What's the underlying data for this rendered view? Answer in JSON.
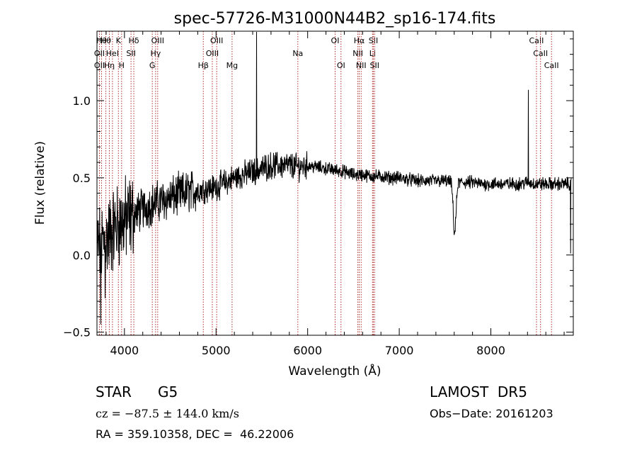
{
  "chart_data": {
    "type": "line",
    "title": "spec-57726-M31000N44B2_sp16-174.fits",
    "xlabel": "Wavelength (Å)",
    "ylabel": "Flux (relative)",
    "xlim": [
      3700,
      8900
    ],
    "ylim": [
      -0.52,
      1.45
    ],
    "xticks": [
      4000,
      5000,
      6000,
      7000,
      8000
    ],
    "yticks": [
      -0.5,
      0.0,
      0.5,
      1.0
    ],
    "ytick_labels": [
      "−0.5",
      "0.0",
      "0.5",
      "1.0"
    ],
    "grid": false,
    "line_color": "#000000",
    "marker_color": "#b03030",
    "continuum": [
      [
        3700,
        0.05
      ],
      [
        3800,
        0.1
      ],
      [
        3900,
        0.18
      ],
      [
        4000,
        0.22
      ],
      [
        4100,
        0.26
      ],
      [
        4200,
        0.3
      ],
      [
        4300,
        0.33
      ],
      [
        4400,
        0.35
      ],
      [
        4500,
        0.37
      ],
      [
        4600,
        0.39
      ],
      [
        4700,
        0.41
      ],
      [
        4800,
        0.42
      ],
      [
        4900,
        0.43
      ],
      [
        5000,
        0.44
      ],
      [
        5100,
        0.47
      ],
      [
        5200,
        0.5
      ],
      [
        5300,
        0.52
      ],
      [
        5400,
        0.54
      ],
      [
        5500,
        0.56
      ],
      [
        5600,
        0.58
      ],
      [
        5700,
        0.58
      ],
      [
        5800,
        0.58
      ],
      [
        5900,
        0.57
      ],
      [
        6000,
        0.58
      ],
      [
        6100,
        0.57
      ],
      [
        6200,
        0.56
      ],
      [
        6300,
        0.55
      ],
      [
        6400,
        0.54
      ],
      [
        6500,
        0.52
      ],
      [
        6600,
        0.52
      ],
      [
        6700,
        0.51
      ],
      [
        6800,
        0.51
      ],
      [
        6900,
        0.5
      ],
      [
        7000,
        0.5
      ],
      [
        7100,
        0.49
      ],
      [
        7200,
        0.48
      ],
      [
        7300,
        0.48
      ],
      [
        7400,
        0.48
      ],
      [
        7500,
        0.48
      ],
      [
        7600,
        0.47
      ],
      [
        7700,
        0.47
      ],
      [
        7800,
        0.47
      ],
      [
        7900,
        0.46
      ],
      [
        8000,
        0.46
      ],
      [
        8100,
        0.46
      ],
      [
        8200,
        0.46
      ],
      [
        8300,
        0.46
      ],
      [
        8400,
        0.47
      ],
      [
        8500,
        0.46
      ],
      [
        8600,
        0.46
      ],
      [
        8700,
        0.46
      ],
      [
        8800,
        0.46
      ],
      [
        8900,
        0.46
      ]
    ],
    "features": [
      {
        "x": 5441,
        "y": 1.45
      },
      {
        "x": 8410,
        "y": 1.07
      },
      {
        "x": 7600,
        "y": 0.13
      },
      {
        "x": 8870,
        "y": 0.01
      },
      {
        "x": 3740,
        "y": -0.45
      },
      {
        "x": 3790,
        "y": -0.28
      }
    ],
    "lines": [
      {
        "x": 3750,
        "label": "Hθ",
        "row": 0
      },
      {
        "x": 3797,
        "label": "Hθ",
        "row": 0
      },
      {
        "x": 3727,
        "label": "OII",
        "row": 1
      },
      {
        "x": 3727,
        "label": "OII",
        "row": 2
      },
      {
        "x": 3835,
        "label": "Hη",
        "row": 2
      },
      {
        "x": 3869,
        "label": "HeI",
        "row": 1
      },
      {
        "x": 3934,
        "label": "K",
        "row": 0
      },
      {
        "x": 3969,
        "label": "H",
        "row": 2
      },
      {
        "x": 4102,
        "label": "Hδ",
        "row": 0
      },
      {
        "x": 4072,
        "label": "SII",
        "row": 1
      },
      {
        "x": 4340,
        "label": "Hγ",
        "row": 1
      },
      {
        "x": 4304,
        "label": "G",
        "row": 2
      },
      {
        "x": 4363,
        "label": "OIII",
        "row": 0
      },
      {
        "x": 4861,
        "label": "Hβ",
        "row": 2
      },
      {
        "x": 4959,
        "label": "OIII",
        "row": 1
      },
      {
        "x": 5007,
        "label": "OIII",
        "row": 0
      },
      {
        "x": 5175,
        "label": "Mg",
        "row": 2
      },
      {
        "x": 5893,
        "label": "Na",
        "row": 1
      },
      {
        "x": 6300,
        "label": "OI",
        "row": 0
      },
      {
        "x": 6364,
        "label": "OI",
        "row": 2
      },
      {
        "x": 6548,
        "label": "NII",
        "row": 1
      },
      {
        "x": 6563,
        "label": "Hα",
        "row": 0
      },
      {
        "x": 6584,
        "label": "NII",
        "row": 2
      },
      {
        "x": 6708,
        "label": "Li",
        "row": 1
      },
      {
        "x": 6717,
        "label": "SII",
        "row": 0
      },
      {
        "x": 6731,
        "label": "SII",
        "row": 2
      },
      {
        "x": 8498,
        "label": "CaII",
        "row": 0
      },
      {
        "x": 8542,
        "label": "CaII",
        "row": 1
      },
      {
        "x": 8662,
        "label": "CaII",
        "row": 2
      }
    ]
  },
  "info": {
    "object_class": "STAR",
    "subclass": "G5",
    "survey": "LAMOST  DR5",
    "cz": "cz = −87.5 ± 144.0 km/s",
    "obs_date": "Obs−Date: 20161203",
    "coords": "RA = 359.10358, DEC =  46.22006"
  }
}
